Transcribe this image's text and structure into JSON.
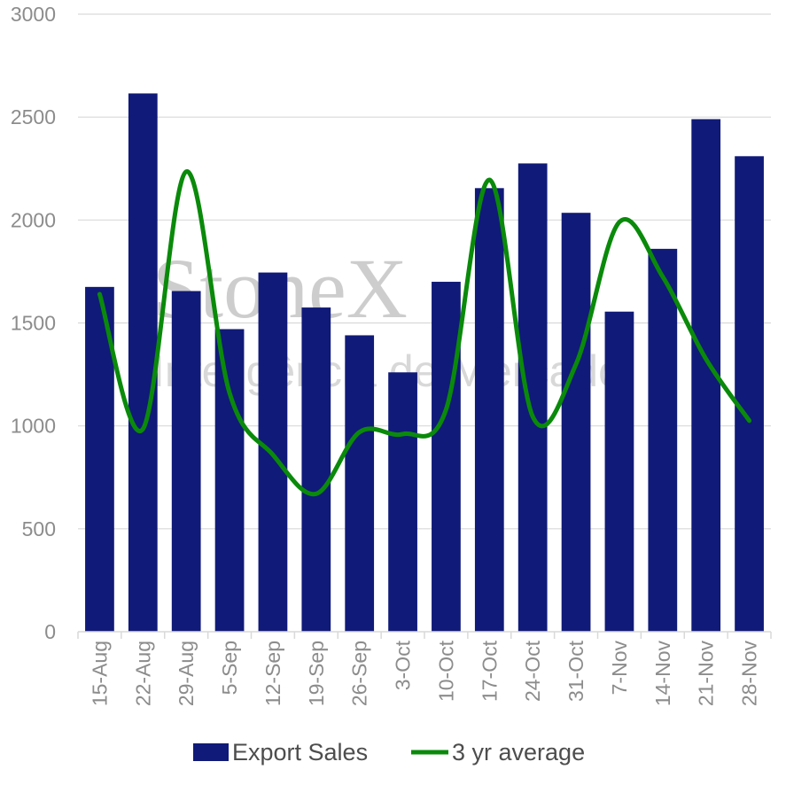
{
  "watermark": {
    "brand": "StoneX",
    "tagline": "Inteligência de Mercado"
  },
  "chart_data": {
    "type": "bar",
    "categories": [
      "15-Aug",
      "22-Aug",
      "29-Aug",
      "5-Sep",
      "12-Sep",
      "19-Sep",
      "26-Sep",
      "3-Oct",
      "10-Oct",
      "17-Oct",
      "24-Oct",
      "31-Oct",
      "7-Nov",
      "14-Nov",
      "21-Nov",
      "28-Nov"
    ],
    "ylim": [
      0,
      3000
    ],
    "yticks": [
      0,
      500,
      1000,
      1500,
      2000,
      2500,
      3000
    ],
    "grid": true,
    "legend_position": "bottom",
    "series": [
      {
        "name": "Export Sales",
        "type": "bar",
        "color": "#101a78",
        "values": [
          1675,
          2615,
          1655,
          1470,
          1745,
          1575,
          1440,
          1260,
          1700,
          2155,
          2275,
          2035,
          1555,
          1860,
          2490,
          2310
        ]
      },
      {
        "name": "3 yr average",
        "type": "line",
        "color": "#0a8a0a",
        "values": [
          1640,
          985,
          2235,
          1160,
          860,
          670,
          970,
          960,
          1080,
          2195,
          1045,
          1300,
          1990,
          1725,
          1325,
          1025
        ]
      }
    ]
  }
}
